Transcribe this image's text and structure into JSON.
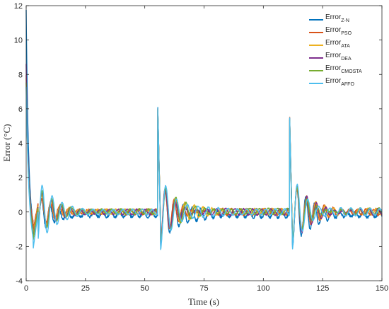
{
  "chart_data": {
    "type": "line",
    "xlabel": "Time (s)",
    "ylabel": "Error (°C)",
    "xlim": [
      0,
      150
    ],
    "ylim": [
      -4,
      12
    ],
    "xticks": [
      "0",
      "25",
      "50",
      "75",
      "100",
      "125",
      "150"
    ],
    "yticks": [
      "-4",
      "-2",
      "0",
      "2",
      "4",
      "6",
      "8",
      "10",
      "12"
    ],
    "grid": false,
    "legend_position": "top-right",
    "legend": [
      {
        "base": "Error",
        "sub": "Z-N"
      },
      {
        "base": "Error",
        "sub": "PSO"
      },
      {
        "base": "Error",
        "sub": "ATA"
      },
      {
        "base": "Error",
        "sub": "DEA"
      },
      {
        "base": "Error",
        "sub": "CMOSTA"
      },
      {
        "base": "Error",
        "sub": "AFFO"
      }
    ],
    "series": [
      {
        "name": "Z-N",
        "color": "#0072BD",
        "initial": 11.7,
        "undershoot": -1.2,
        "step_peak": 6.0,
        "step_min": -1.9,
        "noise": 0.15,
        "offset": -0.15
      },
      {
        "name": "PSO",
        "color": "#D95319",
        "initial": 8.0,
        "undershoot": -1.0,
        "step_peak": 6.1,
        "step_min": -1.6,
        "noise": 0.1,
        "offset": 0.0
      },
      {
        "name": "ATA",
        "color": "#EDB120",
        "initial": 7.8,
        "undershoot": -1.3,
        "step_peak": 6.0,
        "step_min": -1.7,
        "noise": 0.08,
        "offset": 0.02
      },
      {
        "name": "DEA",
        "color": "#7E2F8E",
        "initial": 8.6,
        "undershoot": -1.5,
        "step_peak": 6.0,
        "step_min": -1.8,
        "noise": 0.08,
        "offset": 0.0
      },
      {
        "name": "CMOSTA",
        "color": "#77AC30",
        "initial": 7.5,
        "undershoot": -1.6,
        "step_peak": 6.0,
        "step_min": -1.7,
        "noise": 0.07,
        "offset": 0.03
      },
      {
        "name": "AFFO",
        "color": "#4DBEEE",
        "initial": 7.3,
        "undershoot": -2.1,
        "step_peak": 6.1,
        "step_min": -2.3,
        "noise": 0.06,
        "offset": 0.0
      }
    ],
    "disturbances": [
      {
        "t": 55.5
      },
      {
        "t": 111.0
      }
    ]
  }
}
